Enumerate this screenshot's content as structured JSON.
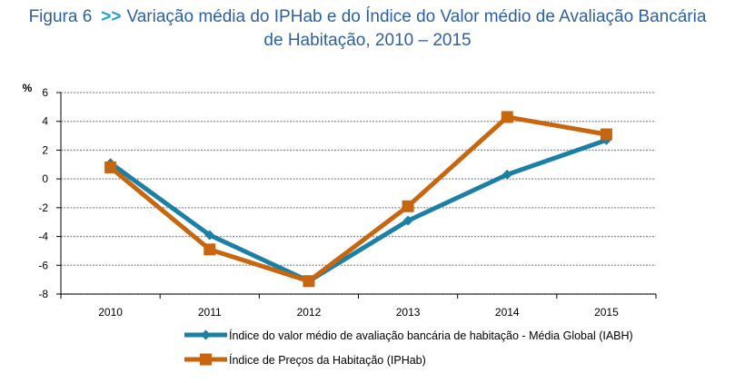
{
  "title": {
    "figure_label": "Figura 6",
    "arrows": ">>",
    "line1": "Variação média do IPHab e do Índice do Valor médio de Avaliação Bancária",
    "line2": "de Habitação, 2010 – 2015"
  },
  "colors": {
    "title": "#2e5f9e",
    "arrows": "#21a0d2",
    "series_iabh": "#1b7fa6",
    "series_iphab": "#c8650f",
    "grid": "#8c8c8c"
  },
  "chart_data": {
    "type": "line",
    "title": "Variação média do IPHab e do Índice do Valor médio de Avaliação Bancária de Habitação, 2010 – 2015",
    "ylabel": "%",
    "xlabel": "",
    "categories": [
      "2010",
      "2011",
      "2012",
      "2013",
      "2014",
      "2015"
    ],
    "ylim": [
      -8,
      6
    ],
    "yticks": [
      6,
      4,
      2,
      0,
      -2,
      -4,
      -6,
      -8
    ],
    "grid": true,
    "legend_position": "bottom",
    "series": [
      {
        "name": "Índice do valor médio de avaliação bancária de habitação - Média Global (IABH)",
        "marker": "diamond",
        "color": "#1b7fa6",
        "values": [
          1.1,
          -3.9,
          -7.1,
          -2.9,
          0.3,
          2.7
        ]
      },
      {
        "name": "Índice de Preços da Habitação (IPHab)",
        "marker": "square",
        "color": "#c8650f",
        "values": [
          0.8,
          -4.9,
          -7.1,
          -1.9,
          4.3,
          3.1
        ]
      }
    ]
  }
}
